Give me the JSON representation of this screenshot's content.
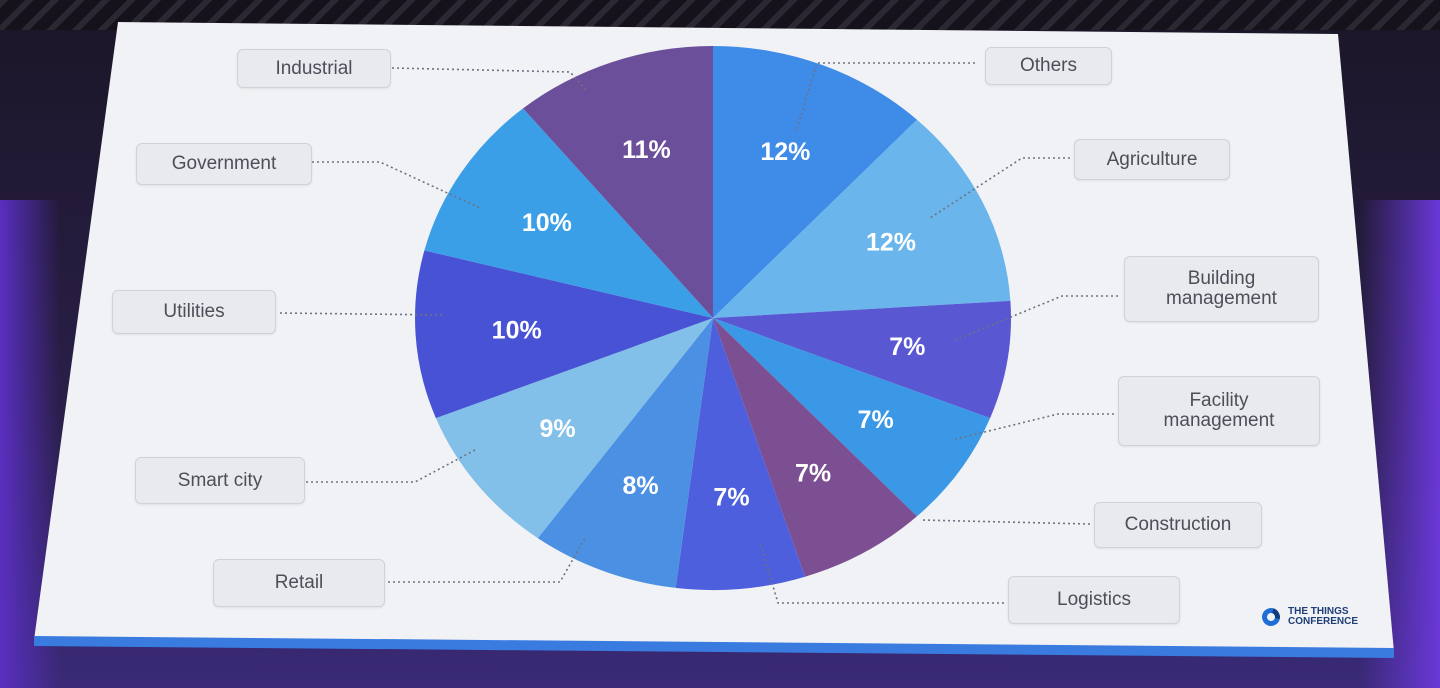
{
  "chart_data": {
    "type": "pie",
    "title": "",
    "slices": [
      {
        "label": "Others",
        "value": 12,
        "display": "12%",
        "color": "#3f8be8"
      },
      {
        "label": "Agriculture",
        "value": 12,
        "display": "12%",
        "color": "#6ab6ec"
      },
      {
        "label": "Building management",
        "label_lines": [
          "Building",
          "management"
        ],
        "value": 7,
        "display": "7%",
        "color": "#5957d2"
      },
      {
        "label": "Facility management",
        "label_lines": [
          "Facility",
          "management"
        ],
        "value": 7,
        "display": "7%",
        "color": "#3a98e6"
      },
      {
        "label": "Construction",
        "value": 7,
        "display": "7%",
        "color": "#7c4f92"
      },
      {
        "label": "Logistics",
        "value": 7,
        "display": "7%",
        "color": "#4d5fdc"
      },
      {
        "label": "Retail",
        "value": 8,
        "display": "8%",
        "color": "#4b90e2"
      },
      {
        "label": "Smart city",
        "value": 9,
        "display": "9%",
        "color": "#82c0ea"
      },
      {
        "label": "Utilities",
        "value": 10,
        "display": "10%",
        "color": "#4753d4"
      },
      {
        "label": "Government",
        "value": 10,
        "display": "10%",
        "color": "#3b9fe8"
      },
      {
        "label": "Industrial",
        "value": 11,
        "display": "11%",
        "color": "#6c4f9a"
      }
    ]
  },
  "branding": {
    "logo_line1": "THE THINGS",
    "logo_line2": "CONFERENCE"
  }
}
